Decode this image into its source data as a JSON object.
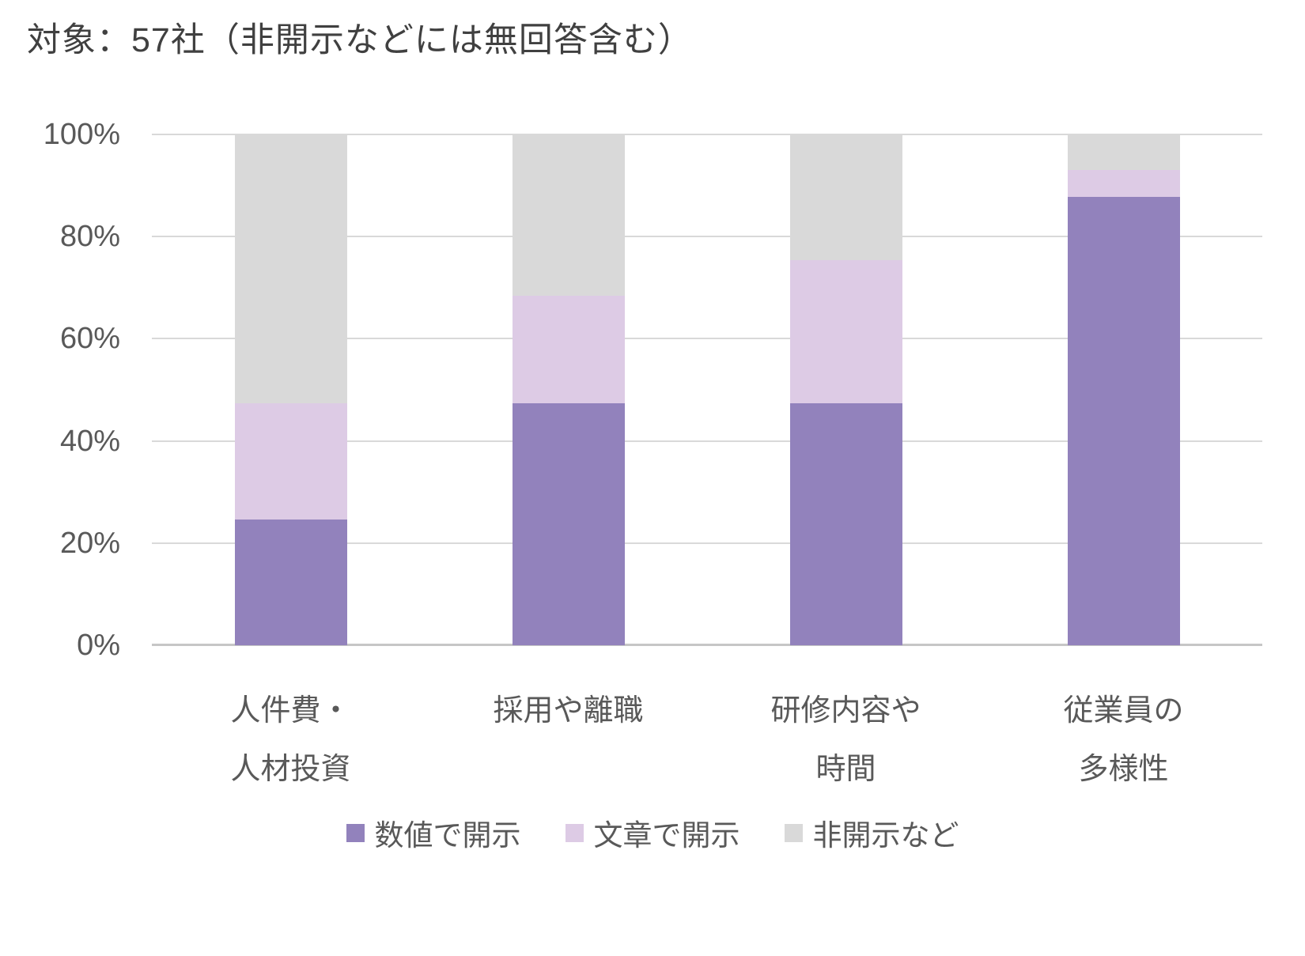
{
  "title": "対象：57社（非開示などには無回答含む）",
  "chart_data": {
    "type": "bar",
    "variant": "100%-stacked-column",
    "title": "対象：57社（非開示などには無回答含む）",
    "categories": [
      [
        "人件費・",
        "人材投資"
      ],
      [
        "採用や離職"
      ],
      [
        "研修内容や",
        "時間"
      ],
      [
        "従業員の",
        "多様性"
      ]
    ],
    "series": [
      {
        "name": "数値で開示",
        "color": "#9282BC",
        "values": [
          24.6,
          47.4,
          47.4,
          87.7
        ]
      },
      {
        "name": "文章で開示",
        "color": "#DDCBE5",
        "values": [
          22.8,
          21.1,
          28.1,
          5.3
        ]
      },
      {
        "name": "非開示など",
        "color": "#D9D9D9",
        "values": [
          52.6,
          31.6,
          24.6,
          7.0
        ]
      }
    ],
    "unit": "%",
    "y_axis": {
      "min": 0,
      "max": 100,
      "tick_step": 20,
      "tick_labels": [
        "0%",
        "20%",
        "40%",
        "60%",
        "80%",
        "100%"
      ]
    },
    "grid": true,
    "legend_position": "bottom",
    "colors": {
      "gridline": "#d9d9d9",
      "axis_line": "#c6c6c6",
      "axis_text": "#595959",
      "title_text": "#404040"
    }
  }
}
